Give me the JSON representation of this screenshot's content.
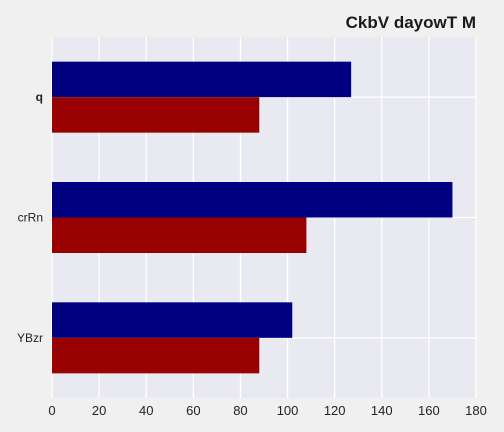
{
  "chart_data": {
    "type": "bar",
    "orientation": "horizontal",
    "title": "CkbV dayowT M",
    "xlabel": "",
    "ylabel": "",
    "categories": [
      "q",
      "crRn",
      "YBzr"
    ],
    "series": [
      {
        "color": "#000080",
        "values": [
          127,
          170,
          102
        ]
      },
      {
        "color": "#990000",
        "values": [
          88,
          108,
          88
        ]
      }
    ],
    "xlim": [
      0,
      180
    ],
    "xticks": [
      "0",
      "20",
      "40",
      "60",
      "80",
      "100",
      "120",
      "140",
      "160",
      "180"
    ],
    "grid": true,
    "legend": "none",
    "plot_background": "#e9e9f1",
    "page_background": "#f0f0f0"
  }
}
